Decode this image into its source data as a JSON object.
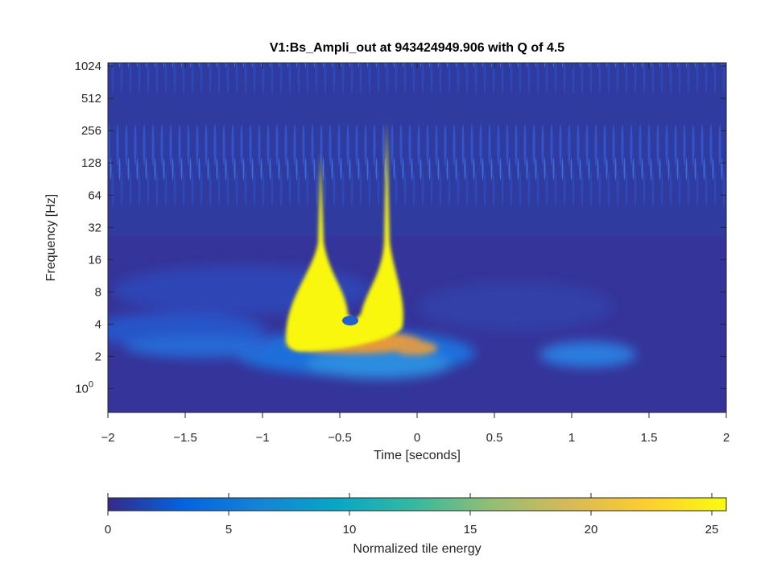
{
  "chart_data": {
    "type": "heatmap",
    "title": "V1:Bs_Ampli_out at 943424949.906 with Q of 4.5",
    "xlabel": "Time [seconds]",
    "ylabel": "Frequency [Hz]",
    "xlim": [
      -2,
      2
    ],
    "x_ticks": [
      "−2",
      "−1.5",
      "−1",
      "−0.5",
      "0",
      "0.5",
      "1",
      "1.5",
      "2"
    ],
    "y_scale": "log2",
    "ylim": [
      0.6,
      1100
    ],
    "y_ticks": [
      {
        "value": 1,
        "label": "10",
        "sup": "0"
      },
      {
        "value": 2,
        "label": "2"
      },
      {
        "value": 4,
        "label": "4"
      },
      {
        "value": 8,
        "label": "8"
      },
      {
        "value": 16,
        "label": "16"
      },
      {
        "value": 32,
        "label": "32"
      },
      {
        "value": 64,
        "label": "64"
      },
      {
        "value": 128,
        "label": "128"
      },
      {
        "value": 256,
        "label": "256"
      },
      {
        "value": 512,
        "label": "512"
      },
      {
        "value": 1024,
        "label": "1024"
      }
    ],
    "colorbar": {
      "label": "Normalized tile energy",
      "range": [
        0,
        25.6
      ],
      "ticks": [
        "0",
        "5",
        "10",
        "15",
        "20",
        "25"
      ],
      "tick_values": [
        0,
        5,
        10,
        15,
        20,
        25
      ],
      "colormap": "parula"
    },
    "features": [
      {
        "name": "left lobe",
        "t": -0.62,
        "f_min": 2.5,
        "f_peak": 8,
        "f_max": 150,
        "energy": 25.6
      },
      {
        "name": "right lobe",
        "t": -0.2,
        "f_min": 2.5,
        "f_peak": 8,
        "f_max": 300,
        "energy": 25.6
      },
      {
        "name": "low-frequency blob",
        "t": 1.1,
        "f": 2.2,
        "energy": 7
      }
    ]
  }
}
